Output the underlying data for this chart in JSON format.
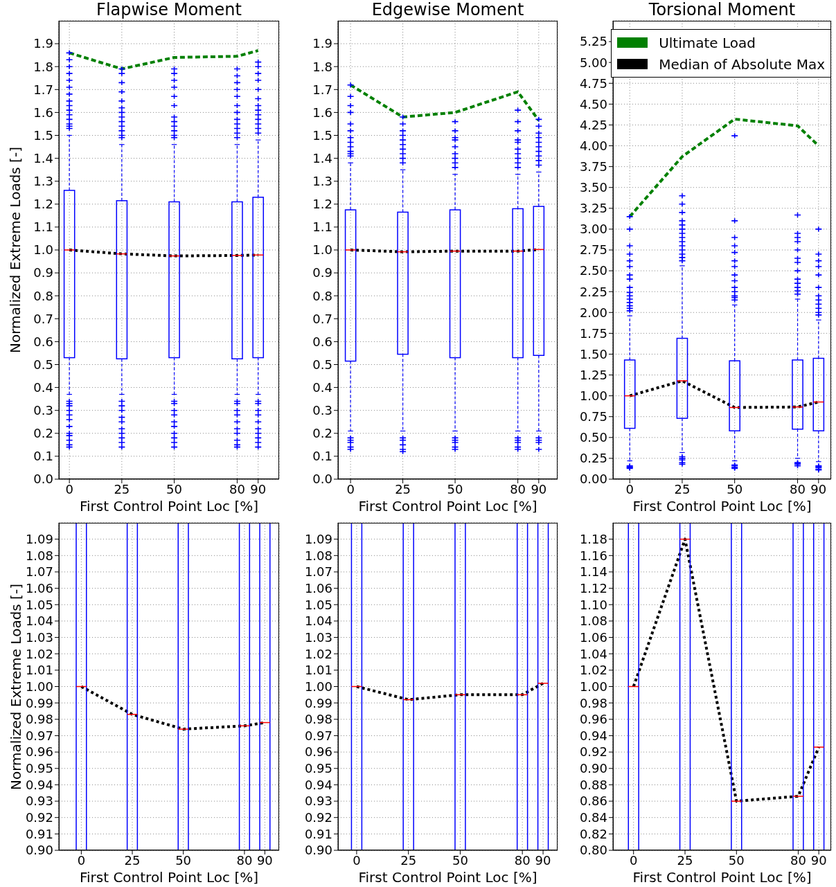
{
  "chart_data": [
    {
      "type": "box",
      "title": "Flapwise Moment",
      "xlabel": "First Control Point Loc [%]",
      "ylabel": "Normalized Extreme Loads [-]",
      "x": [
        0,
        25,
        50,
        80,
        90
      ],
      "xlim": [
        -5,
        100
      ],
      "xticks": [
        0,
        25,
        50,
        80,
        90
      ],
      "ylim": [
        0,
        2
      ],
      "yticks": [
        {
          "value": 0,
          "label": "0.0"
        },
        0.1,
        0.2,
        0.3,
        0.4,
        0.5,
        0.6,
        0.7,
        0.8,
        0.9,
        {
          "value": 1,
          "label": "1.0"
        },
        1.1,
        1.2,
        1.3,
        1.4,
        1.5,
        1.6,
        1.7,
        1.8,
        1.9
      ],
      "grid": true,
      "series": [
        {
          "type": "box",
          "color": "#0000ff",
          "marker": "cross",
          "boxes": [
            {
              "low": 0.37,
              "q1": 0.53,
              "median": 1.0,
              "q3": 1.26,
              "high": 1.5,
              "outliers": [
                0.14,
                0.15,
                0.17,
                0.19,
                0.2,
                0.23,
                0.26,
                0.28,
                0.3,
                0.32,
                0.33,
                0.34,
                1.53,
                1.54,
                1.55,
                1.57,
                1.59,
                1.61,
                1.63,
                1.65,
                1.68,
                1.71,
                1.74,
                1.77,
                1.8,
                1.83,
                1.86
              ]
            },
            {
              "low": 0.37,
              "q1": 0.525,
              "median": 0.983,
              "q3": 1.215,
              "high": 1.46,
              "outliers": [
                0.14,
                0.16,
                0.18,
                0.2,
                0.22,
                0.25,
                0.27,
                0.3,
                0.32,
                0.34,
                1.49,
                1.5,
                1.52,
                1.54,
                1.56,
                1.58,
                1.6,
                1.62,
                1.65,
                1.69,
                1.73,
                1.77,
                1.79
              ]
            },
            {
              "low": 0.37,
              "q1": 0.53,
              "median": 0.974,
              "q3": 1.21,
              "high": 1.46,
              "outliers": [
                0.14,
                0.16,
                0.18,
                0.2,
                0.23,
                0.25,
                0.28,
                0.3,
                0.33,
                0.34,
                1.49,
                1.5,
                1.52,
                1.54,
                1.56,
                1.58,
                1.63,
                1.67,
                1.71,
                1.74,
                1.77,
                1.79
              ]
            },
            {
              "low": 0.37,
              "q1": 0.525,
              "median": 0.976,
              "q3": 1.21,
              "high": 1.46,
              "outliers": [
                0.14,
                0.15,
                0.17,
                0.2,
                0.22,
                0.25,
                0.28,
                0.3,
                0.33,
                0.34,
                1.49,
                1.51,
                1.53,
                1.55,
                1.57,
                1.6,
                1.63,
                1.67,
                1.7,
                1.73,
                1.76,
                1.79
              ]
            },
            {
              "low": 0.37,
              "q1": 0.53,
              "median": 0.978,
              "q3": 1.23,
              "high": 1.48,
              "outliers": [
                0.14,
                0.16,
                0.18,
                0.2,
                0.22,
                0.25,
                0.28,
                0.3,
                0.33,
                0.34,
                1.51,
                1.53,
                1.55,
                1.57,
                1.59,
                1.61,
                1.63,
                1.66,
                1.7,
                1.74,
                1.77,
                1.8,
                1.82
              ]
            }
          ]
        },
        {
          "type": "line",
          "color": "#008000",
          "line_style": "dashed",
          "values": [
            1.86,
            1.79,
            1.84,
            1.845,
            1.87
          ]
        },
        {
          "type": "line",
          "color": "#000000",
          "line_style": "dotted",
          "values": [
            1.0,
            0.983,
            0.974,
            0.976,
            0.978
          ]
        }
      ]
    },
    {
      "type": "box",
      "title": "Edgewise Moment",
      "xlabel": "First Control Point Loc [%]",
      "x": [
        0,
        25,
        50,
        80,
        90
      ],
      "xlim": [
        -6,
        99
      ],
      "xticks": [
        0,
        25,
        50,
        80,
        90
      ],
      "ylim": [
        0,
        2
      ],
      "yticks": [
        {
          "value": 0,
          "label": "0.0"
        },
        0.1,
        0.2,
        0.3,
        0.4,
        0.5,
        0.6,
        0.7,
        0.8,
        0.9,
        {
          "value": 1,
          "label": "1.0"
        },
        1.1,
        1.2,
        1.3,
        1.4,
        1.5,
        1.6,
        1.7,
        1.8,
        1.9
      ],
      "grid": true,
      "series": [
        {
          "type": "box",
          "color": "#0000ff",
          "marker": "cross",
          "boxes": [
            {
              "low": 0.21,
              "q1": 0.515,
              "median": 1.0,
              "q3": 1.175,
              "high": 1.38,
              "outliers": [
                0.13,
                0.14,
                0.16,
                0.17,
                0.18,
                1.41,
                1.42,
                1.43,
                1.45,
                1.47,
                1.49,
                1.52,
                1.55,
                1.6,
                1.63,
                1.67,
                1.72
              ]
            },
            {
              "low": 0.21,
              "q1": 0.545,
              "median": 0.992,
              "q3": 1.165,
              "high": 1.35,
              "outliers": [
                0.12,
                0.13,
                0.15,
                0.17,
                0.18,
                1.38,
                1.4,
                1.42,
                1.44,
                1.46,
                1.48,
                1.5,
                1.52,
                1.55,
                1.58
              ]
            },
            {
              "low": 0.21,
              "q1": 0.53,
              "median": 0.995,
              "q3": 1.175,
              "high": 1.33,
              "outliers": [
                0.13,
                0.14,
                0.16,
                0.17,
                0.18,
                1.36,
                1.38,
                1.4,
                1.42,
                1.45,
                1.48,
                1.49,
                1.52,
                1.56
              ]
            },
            {
              "low": 0.21,
              "q1": 0.53,
              "median": 0.995,
              "q3": 1.18,
              "high": 1.33,
              "outliers": [
                0.13,
                0.14,
                0.16,
                0.17,
                0.18,
                1.36,
                1.38,
                1.4,
                1.42,
                1.44,
                1.47,
                1.48,
                1.52,
                1.56,
                1.61
              ]
            },
            {
              "low": 0.21,
              "q1": 0.54,
              "median": 1.002,
              "q3": 1.19,
              "high": 1.34,
              "outliers": [
                0.13,
                0.16,
                0.17,
                0.18,
                1.37,
                1.39,
                1.41,
                1.43,
                1.45,
                1.47,
                1.49,
                1.51,
                1.54,
                1.57
              ]
            }
          ]
        },
        {
          "type": "line",
          "color": "#008000",
          "line_style": "dashed",
          "values": [
            1.72,
            1.58,
            1.6,
            1.69,
            1.565
          ]
        },
        {
          "type": "line",
          "color": "#000000",
          "line_style": "dotted",
          "values": [
            1.0,
            0.992,
            0.995,
            0.995,
            1.002
          ]
        }
      ]
    },
    {
      "type": "box",
      "title": "Torsional Moment",
      "xlabel": "First Control Point Loc [%]",
      "x": [
        0,
        25,
        50,
        80,
        90
      ],
      "xlim": [
        -8,
        96
      ],
      "xticks": [
        0,
        25,
        50,
        80,
        90
      ],
      "ylim": [
        0,
        5.5
      ],
      "yticks": [
        {
          "value": 0,
          "label": "0.00"
        },
        0.25,
        {
          "value": 0.5,
          "label": "0.50"
        },
        0.75,
        {
          "value": 1,
          "label": "1.00"
        },
        1.25,
        {
          "value": 1.5,
          "label": "1.50"
        },
        1.75,
        {
          "value": 2,
          "label": "2.00"
        },
        2.25,
        {
          "value": 2.5,
          "label": "2.50"
        },
        2.75,
        {
          "value": 3,
          "label": "3.00"
        },
        3.25,
        {
          "value": 3.5,
          "label": "3.50"
        },
        3.75,
        {
          "value": 4,
          "label": "4.00"
        },
        4.25,
        {
          "value": 4.5,
          "label": "4.50"
        },
        4.75,
        {
          "value": 5,
          "label": "5.00"
        },
        5.25
      ],
      "grid": true,
      "legend": "top right",
      "series": [
        {
          "type": "box",
          "color": "#0000ff",
          "marker": "cross",
          "boxes": [
            {
              "low": 0.22,
              "q1": 0.61,
              "median": 1.0,
              "q3": 1.43,
              "high": 1.96,
              "outliers": [
                0.13,
                0.14,
                0.15,
                0.16,
                2.02,
                2.05,
                2.08,
                2.12,
                2.16,
                2.2,
                2.24,
                2.3,
                2.4,
                2.45,
                2.55,
                2.62,
                2.7,
                2.8,
                3.0,
                3.15
              ]
            },
            {
              "low": 0.32,
              "q1": 0.73,
              "median": 1.18,
              "q3": 1.69,
              "high": 2.56,
              "outliers": [
                0.18,
                0.2,
                0.23,
                0.25,
                0.27,
                2.62,
                2.66,
                2.7,
                2.75,
                2.8,
                2.85,
                2.9,
                2.95,
                3.0,
                3.05,
                3.1,
                3.2,
                3.3,
                3.4
              ]
            },
            {
              "low": 0.22,
              "q1": 0.58,
              "median": 0.86,
              "q3": 1.42,
              "high": 2.09,
              "outliers": [
                0.13,
                0.14,
                0.16,
                0.17,
                2.15,
                2.18,
                2.2,
                2.25,
                2.3,
                2.38,
                2.45,
                2.55,
                2.62,
                2.72,
                2.8,
                2.9,
                3.1,
                4.12
              ]
            },
            {
              "low": 0.25,
              "q1": 0.6,
              "median": 0.866,
              "q3": 1.43,
              "high": 2.16,
              "outliers": [
                0.16,
                0.18,
                0.19,
                0.2,
                2.22,
                2.26,
                2.3,
                2.35,
                2.4,
                2.5,
                2.6,
                2.65,
                2.75,
                2.85,
                2.9,
                2.95,
                3.17
              ]
            },
            {
              "low": 0.21,
              "q1": 0.58,
              "median": 0.926,
              "q3": 1.45,
              "high": 1.91,
              "outliers": [
                0.11,
                0.12,
                0.14,
                0.15,
                0.16,
                1.97,
                2.0,
                2.05,
                2.1,
                2.15,
                2.2,
                2.3,
                2.45,
                2.55,
                2.62,
                2.7,
                3.0
              ]
            }
          ]
        },
        {
          "type": "line",
          "name": "Ultimate Load",
          "color": "#008000",
          "line_style": "dashed",
          "values": [
            3.15,
            3.87,
            4.32,
            4.24,
            4.0
          ]
        },
        {
          "type": "line",
          "name": "Median of Absolute Max",
          "color": "#000000",
          "line_style": "dotted",
          "values": [
            1.0,
            1.18,
            0.86,
            0.866,
            0.926
          ]
        }
      ]
    },
    {
      "type": "box",
      "xlabel": "First Control Point Loc [%]",
      "ylabel": "Normalized Extreme Loads [-]",
      "x": [
        0,
        25,
        50,
        80,
        90
      ],
      "xlim": [
        -11,
        97
      ],
      "xticks": [
        0,
        25,
        50,
        80,
        90
      ],
      "ylim": [
        0.9,
        1.1
      ],
      "yticks": [
        {
          "value": 0.9,
          "label": "0.90"
        },
        0.91,
        0.92,
        0.93,
        0.94,
        0.95,
        0.96,
        0.97,
        0.98,
        0.99,
        {
          "value": 1,
          "label": "1.00"
        },
        1.01,
        1.02,
        1.03,
        1.04,
        1.05,
        1.06,
        1.07,
        1.08,
        1.09
      ],
      "grid": true,
      "series": [
        {
          "type": "box",
          "color": "#0000ff",
          "boxes": [
            {
              "low": 0.37,
              "q1": 0.53,
              "median": 1.0,
              "q3": 1.26,
              "high": 1.5
            },
            {
              "low": 0.37,
              "q1": 0.525,
              "median": 0.983,
              "q3": 1.215,
              "high": 1.46
            },
            {
              "low": 0.37,
              "q1": 0.53,
              "median": 0.974,
              "q3": 1.21,
              "high": 1.46
            },
            {
              "low": 0.37,
              "q1": 0.525,
              "median": 0.976,
              "q3": 1.21,
              "high": 1.46
            },
            {
              "low": 0.37,
              "q1": 0.53,
              "median": 0.978,
              "q3": 1.23,
              "high": 1.48
            }
          ]
        },
        {
          "type": "line",
          "color": "#000000",
          "line_style": "dotted",
          "values": [
            1.0,
            0.983,
            0.974,
            0.976,
            0.978
          ]
        }
      ]
    },
    {
      "type": "box",
      "xlabel": "First Control Point Loc [%]",
      "x": [
        0,
        25,
        50,
        80,
        90
      ],
      "xlim": [
        -9,
        97
      ],
      "xticks": [
        0,
        25,
        50,
        80,
        90
      ],
      "ylim": [
        0.9,
        1.1
      ],
      "yticks": [
        {
          "value": 0.9,
          "label": "0.90"
        },
        0.91,
        0.92,
        0.93,
        0.94,
        0.95,
        0.96,
        0.97,
        0.98,
        0.99,
        {
          "value": 1,
          "label": "1.00"
        },
        1.01,
        1.02,
        1.03,
        1.04,
        1.05,
        1.06,
        1.07,
        1.08,
        1.09
      ],
      "grid": true,
      "series": [
        {
          "type": "box",
          "color": "#0000ff",
          "boxes": [
            {
              "low": 0.21,
              "q1": 0.515,
              "median": 1.0,
              "q3": 1.175,
              "high": 1.38
            },
            {
              "low": 0.21,
              "q1": 0.545,
              "median": 0.992,
              "q3": 1.165,
              "high": 1.35
            },
            {
              "low": 0.21,
              "q1": 0.53,
              "median": 0.995,
              "q3": 1.175,
              "high": 1.33
            },
            {
              "low": 0.21,
              "q1": 0.53,
              "median": 0.995,
              "q3": 1.18,
              "high": 1.33
            },
            {
              "low": 0.21,
              "q1": 0.54,
              "median": 1.002,
              "q3": 1.19,
              "high": 1.34
            }
          ]
        },
        {
          "type": "line",
          "color": "#000000",
          "line_style": "dotted",
          "values": [
            1.0,
            0.992,
            0.995,
            0.995,
            1.002
          ]
        }
      ]
    },
    {
      "type": "box",
      "xlabel": "First Control Point Loc [%]",
      "x": [
        0,
        25,
        50,
        80,
        90
      ],
      "xlim": [
        -10,
        96
      ],
      "xticks": [
        0,
        25,
        50,
        80,
        90
      ],
      "ylim": [
        0.8,
        1.2
      ],
      "yticks": [
        {
          "value": 0.8,
          "label": "0.80"
        },
        0.82,
        0.84,
        0.86,
        0.88,
        {
          "value": 0.9,
          "label": "0.90"
        },
        0.92,
        0.94,
        0.96,
        0.98,
        {
          "value": 1,
          "label": "1.00"
        },
        1.02,
        1.04,
        1.06,
        1.08,
        {
          "value": 1.1,
          "label": "1.10"
        },
        1.12,
        1.14,
        1.16,
        1.18
      ],
      "grid": true,
      "series": [
        {
          "type": "box",
          "color": "#0000ff",
          "boxes": [
            {
              "low": 0.22,
              "q1": 0.61,
              "median": 1.0,
              "q3": 1.43,
              "high": 1.96
            },
            {
              "low": 0.32,
              "q1": 0.73,
              "median": 1.18,
              "q3": 1.69,
              "high": 2.56
            },
            {
              "low": 0.22,
              "q1": 0.58,
              "median": 0.86,
              "q3": 1.42,
              "high": 2.09
            },
            {
              "low": 0.25,
              "q1": 0.6,
              "median": 0.866,
              "q3": 1.43,
              "high": 2.16
            },
            {
              "low": 0.21,
              "q1": 0.58,
              "median": 0.926,
              "q3": 1.45,
              "high": 1.91
            }
          ]
        },
        {
          "type": "line",
          "color": "#000000",
          "line_style": "dotted",
          "values": [
            1.0,
            1.18,
            0.86,
            0.866,
            0.926
          ]
        }
      ]
    }
  ]
}
